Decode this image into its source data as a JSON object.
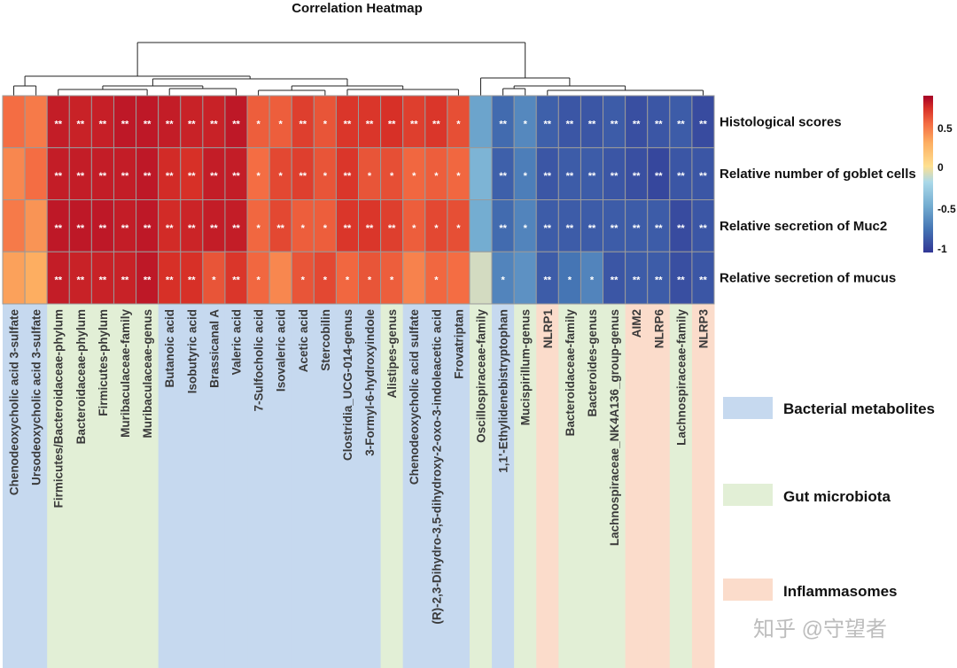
{
  "chart_data": {
    "type": "heatmap",
    "title": "Correlation Heatmap",
    "rows": [
      "Histological scores",
      "Relative number of goblet cells",
      "Relative secretion of Muc2",
      "Relative secretion of mucus"
    ],
    "columns": [
      {
        "label": "Chenodeoxycholic acid 3-sulfate",
        "group": "Bacterial metabolites"
      },
      {
        "label": "Ursodeoxycholic acid 3-sulfate",
        "group": "Bacterial metabolites"
      },
      {
        "label": "Firmicutes/Bacteroidaceae-phylum",
        "group": "Gut microbiota"
      },
      {
        "label": "Bacteroidaceae-phylum",
        "group": "Gut microbiota"
      },
      {
        "label": "Firmicutes-phylum",
        "group": "Gut microbiota"
      },
      {
        "label": "Muribaculaceae-family",
        "group": "Gut microbiota"
      },
      {
        "label": "Muribaculaceae-genus",
        "group": "Gut microbiota"
      },
      {
        "label": "Butanoic acid",
        "group": "Bacterial metabolites"
      },
      {
        "label": "Isobutyric acid",
        "group": "Bacterial metabolites"
      },
      {
        "label": "Brassicanal A",
        "group": "Bacterial metabolites"
      },
      {
        "label": "Valeric acid",
        "group": "Bacterial metabolites"
      },
      {
        "label": "7-Sulfocholic acid",
        "group": "Bacterial metabolites"
      },
      {
        "label": "Isovaleric acid",
        "group": "Bacterial metabolites"
      },
      {
        "label": "Acetic acid",
        "group": "Bacterial metabolites"
      },
      {
        "label": "Stercobilin",
        "group": "Bacterial metabolites"
      },
      {
        "label": "Clostridia_UCG-014-genus",
        "group": "Bacterial metabolites"
      },
      {
        "label": "3-Formyl-6-hydroxyindole",
        "group": "Bacterial metabolites"
      },
      {
        "label": "Alistipes-genus",
        "group": "Gut microbiota"
      },
      {
        "label": "Chenodeoxycholic acid sulfate",
        "group": "Bacterial metabolites"
      },
      {
        "label": "(R)-2,3-Dihydro-3,5-dihydroxy-2-oxo-3-indoleacetic acid",
        "group": "Bacterial metabolites"
      },
      {
        "label": "Frovatriptan",
        "group": "Bacterial metabolites"
      },
      {
        "label": "Oscillospiraceae-family",
        "group": "Gut microbiota"
      },
      {
        "label": "1,1'-Ethylidenebistryptophan",
        "group": "Bacterial metabolites"
      },
      {
        "label": "Mucispirillum-genus",
        "group": "Gut microbiota"
      },
      {
        "label": "NLRP1",
        "group": "Inflammasomes"
      },
      {
        "label": "Bacteroidaceae-family",
        "group": "Gut microbiota"
      },
      {
        "label": "Bacteroides-genus",
        "group": "Gut microbiota"
      },
      {
        "label": "Lachnospiraceae_NK4A136_group-genus",
        "group": "Gut microbiota"
      },
      {
        "label": "AIM2",
        "group": "Inflammasomes"
      },
      {
        "label": "NLRP6",
        "group": "Inflammasomes"
      },
      {
        "label": "Lachnospiraceae-family",
        "group": "Gut microbiota"
      },
      {
        "label": "NLRP3",
        "group": "Inflammasomes"
      }
    ],
    "values": [
      [
        0.6,
        0.55,
        0.88,
        0.86,
        0.87,
        0.9,
        0.9,
        0.88,
        0.86,
        0.86,
        0.9,
        0.65,
        0.65,
        0.75,
        0.68,
        0.78,
        0.78,
        0.8,
        0.75,
        0.78,
        0.7,
        -0.45,
        -0.75,
        -0.6,
        -0.8,
        -0.85,
        -0.85,
        -0.82,
        -0.88,
        -0.85,
        -0.82,
        -0.9
      ],
      [
        0.5,
        0.6,
        0.88,
        0.88,
        0.88,
        0.88,
        0.9,
        0.82,
        0.8,
        0.88,
        0.88,
        0.6,
        0.72,
        0.75,
        0.68,
        0.78,
        0.68,
        0.7,
        0.62,
        0.65,
        0.62,
        -0.35,
        -0.8,
        -0.65,
        -0.85,
        -0.82,
        -0.82,
        -0.85,
        -0.88,
        -0.92,
        -0.85,
        -0.85
      ],
      [
        0.55,
        0.45,
        0.9,
        0.9,
        0.9,
        0.88,
        0.9,
        0.82,
        0.85,
        0.88,
        0.88,
        0.62,
        0.72,
        0.65,
        0.65,
        0.78,
        0.78,
        0.75,
        0.65,
        0.72,
        0.7,
        -0.4,
        -0.75,
        -0.62,
        -0.82,
        -0.82,
        -0.82,
        -0.82,
        -0.82,
        -0.82,
        -0.9,
        -0.85
      ],
      [
        0.4,
        0.35,
        0.88,
        0.86,
        0.86,
        0.86,
        0.9,
        0.8,
        0.8,
        0.68,
        0.78,
        0.62,
        0.5,
        0.68,
        0.72,
        0.62,
        0.68,
        0.65,
        0.52,
        0.62,
        0.6,
        0.05,
        -0.62,
        -0.55,
        -0.82,
        -0.7,
        -0.62,
        -0.85,
        -0.82,
        -0.82,
        -0.88,
        -0.85
      ]
    ],
    "significance": [
      [
        "",
        "",
        "**",
        "**",
        "**",
        "**",
        "**",
        "**",
        "**",
        "**",
        "**",
        "*",
        "*",
        "**",
        "*",
        "**",
        "**",
        "**",
        "**",
        "**",
        "*",
        "",
        "**",
        "*",
        "**",
        "**",
        "**",
        "**",
        "**",
        "**",
        "**",
        "**"
      ],
      [
        "",
        "",
        "**",
        "**",
        "**",
        "**",
        "**",
        "**",
        "**",
        "**",
        "**",
        "*",
        "*",
        "**",
        "*",
        "**",
        "*",
        "*",
        "*",
        "*",
        "*",
        "",
        "**",
        "*",
        "**",
        "**",
        "**",
        "**",
        "**",
        "**",
        "**",
        "**"
      ],
      [
        "",
        "",
        "**",
        "**",
        "**",
        "**",
        "**",
        "**",
        "**",
        "**",
        "**",
        "*",
        "**",
        "*",
        "*",
        "**",
        "**",
        "**",
        "*",
        "*",
        "*",
        "",
        "**",
        "*",
        "**",
        "**",
        "**",
        "**",
        "**",
        "**",
        "**",
        "**"
      ],
      [
        "",
        "",
        "**",
        "**",
        "**",
        "**",
        "**",
        "**",
        "**",
        "*",
        "**",
        "*",
        "",
        "*",
        "*",
        "*",
        "*",
        "*",
        "",
        "*",
        "",
        "",
        "*",
        "",
        "**",
        "*",
        "*",
        "**",
        "**",
        "**",
        "**",
        "**"
      ]
    ],
    "color_scale": {
      "min": -1,
      "max": 1,
      "ticks": [
        "0.5",
        "0",
        "-0.5",
        "-1"
      ],
      "low": "#313695",
      "mid": "#ffffbf",
      "high": "#a50026"
    },
    "legend": [
      {
        "label": "Bacterial metabolites",
        "color": "#c6d9ef"
      },
      {
        "label": "Gut microbiota",
        "color": "#e2efd6"
      },
      {
        "label": "Inflammasomes",
        "color": "#fbdccb"
      }
    ],
    "legend_placement": "right"
  },
  "watermark": "知乎 @守望者"
}
